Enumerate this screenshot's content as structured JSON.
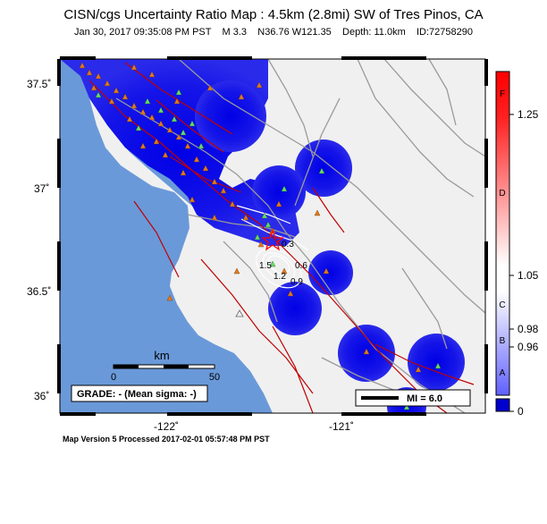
{
  "header": {
    "title": "CISN/cgs Uncertainty Ratio Map : 4.5km (2.8mi) SW of Tres Pinos, CA",
    "subtitle": "Jan 30, 2017 09:35:08 PM PST    M 3.3    N36.76 W121.35    Depth: 11.0km    ID:72758290"
  },
  "axes": {
    "lat_labels": [
      "37.5˚",
      "37˚",
      "36.5˚",
      "36˚"
    ],
    "lon_labels": [
      "-122˚",
      "-121˚"
    ]
  },
  "scalebar": {
    "unit": "km",
    "start": "0",
    "end": "50"
  },
  "grade_text": "GRADE: - (Mean sigma: -)",
  "magnitude_legend": "MI = 6.0",
  "contour_labels": [
    "0.3",
    "0.6",
    "1.5",
    "1.2",
    "0.9"
  ],
  "colorbar": {
    "value_labels": [
      "1.25",
      "1.05",
      "0.98",
      "0.96",
      "0"
    ],
    "grade_letters": [
      "F",
      "D",
      "C",
      "B",
      "A"
    ],
    "colors": {
      "high": "#ff0000",
      "mid": "#ffffff",
      "low": "#0000cc"
    }
  },
  "footer": "Map Version 5 Processed 2017-02-01 05:57:48 PM PST",
  "colors": {
    "ocean": "#6a99d9",
    "land": "#f0f0f0",
    "uncertainty_blue": "#1a1ae6",
    "fault": "#c00000",
    "road": "#9a9a9a",
    "station_orange": "#e07a20",
    "station_green": "#66dd66"
  }
}
